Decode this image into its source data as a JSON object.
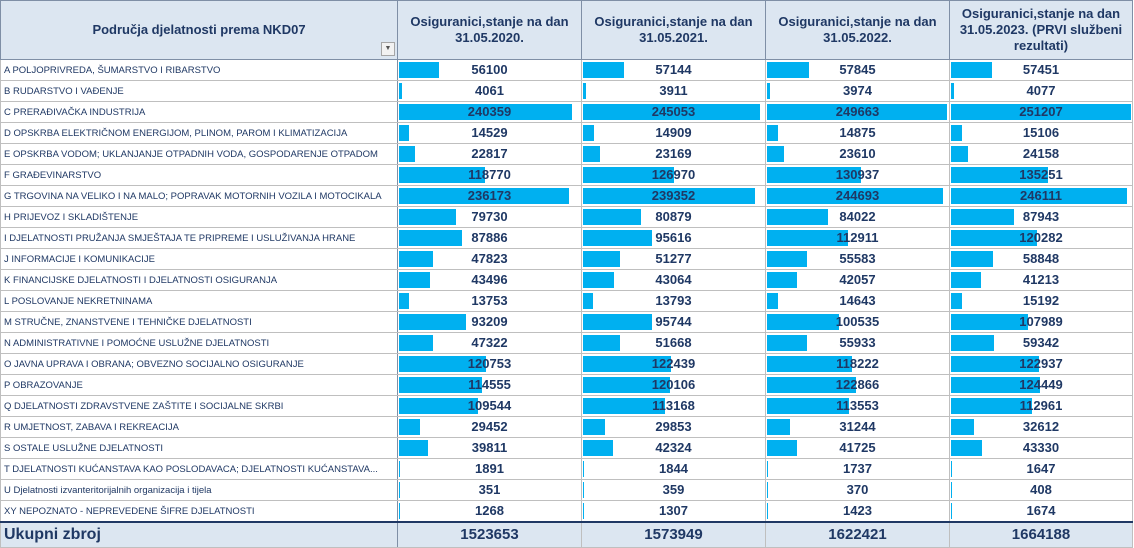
{
  "header": {
    "category": "Područja djelatnosti prema NKD07",
    "columns": [
      "Osiguranici,stanje na dan 31.05.2020.",
      "Osiguranici,stanje na dan 31.05.2021.",
      "Osiguranici,stanje na dan 31.05.2022.",
      "Osiguranici,stanje na dan 31.05.2023. (PRVI službeni rezultati)"
    ]
  },
  "bar_color": "#00b0f0",
  "bar_max": 251207,
  "rows": [
    {
      "label": "A POLJOPRIVREDA, ŠUMARSTVO I RIBARSTVO",
      "values": [
        "56100",
        "57144",
        "57845",
        "57451"
      ]
    },
    {
      "label": "B RUDARSTVO I VAĐENJE",
      "values": [
        "4061",
        "3911",
        "3974",
        "4077"
      ]
    },
    {
      "label": "C PRERAĐIVAČKA INDUSTRIJA",
      "values": [
        "240359",
        "245053",
        "249663",
        "251207"
      ]
    },
    {
      "label": "D OPSKRBA ELEKTRIČNOM ENERGIJOM, PLINOM, PAROM I KLIMATIZACIJA",
      "values": [
        "14529",
        "14909",
        "14875",
        "15106"
      ]
    },
    {
      "label": "E OPSKRBA VODOM; UKLANJANJE OTPADNIH VODA, GOSPODARENJE OTPADOM",
      "values": [
        "22817",
        "23169",
        "23610",
        "24158"
      ]
    },
    {
      "label": "F GRAĐEVINARSTVO",
      "values": [
        "118770",
        "126970",
        "130937",
        "135251"
      ]
    },
    {
      "label": "G TRGOVINA NA VELIKO I NA MALO; POPRAVAK MOTORNIH VOZILA I MOTOCIKALA",
      "values": [
        "236173",
        "239352",
        "244693",
        "246111"
      ]
    },
    {
      "label": "H PRIJEVOZ I SKLADIŠTENJE",
      "values": [
        "79730",
        "80879",
        "84022",
        "87943"
      ]
    },
    {
      "label": "I DJELATNOSTI PRUŽANJA SMJEŠTAJA TE PRIPREME I USLUŽIVANJA HRANE",
      "values": [
        "87886",
        "95616",
        "112911",
        "120282"
      ]
    },
    {
      "label": "J INFORMACIJE I KOMUNIKACIJE",
      "values": [
        "47823",
        "51277",
        "55583",
        "58848"
      ]
    },
    {
      "label": "K FINANCIJSKE DJELATNOSTI I DJELATNOSTI OSIGURANJA",
      "values": [
        "43496",
        "43064",
        "42057",
        "41213"
      ]
    },
    {
      "label": "L POSLOVANJE NEKRETNINAMA",
      "values": [
        "13753",
        "13793",
        "14643",
        "15192"
      ]
    },
    {
      "label": "M STRUČNE, ZNANSTVENE I TEHNIČKE DJELATNOSTI",
      "values": [
        "93209",
        "95744",
        "100535",
        "107989"
      ]
    },
    {
      "label": "N ADMINISTRATIVNE I POMOĆNE USLUŽNE DJELATNOSTI",
      "values": [
        "47322",
        "51668",
        "55933",
        "59342"
      ]
    },
    {
      "label": "O JAVNA UPRAVA I OBRANA; OBVEZNO SOCIJALNO OSIGURANJE",
      "values": [
        "120753",
        "122439",
        "118222",
        "122937"
      ]
    },
    {
      "label": "P OBRAZOVANJE",
      "values": [
        "114555",
        "120106",
        "122866",
        "124449"
      ]
    },
    {
      "label": "Q DJELATNOSTI ZDRAVSTVENE ZAŠTITE I SOCIJALNE SKRBI",
      "values": [
        "109544",
        "113168",
        "113553",
        "112961"
      ]
    },
    {
      "label": "R UMJETNOST, ZABAVA I REKREACIJA",
      "values": [
        "29452",
        "29853",
        "31244",
        "32612"
      ]
    },
    {
      "label": "S OSTALE USLUŽNE DJELATNOSTI",
      "values": [
        "39811",
        "42324",
        "41725",
        "43330"
      ]
    },
    {
      "label": "T DJELATNOSTI KUĆANSTAVA KAO POSLODAVACA; DJELATNOSTI KUĆANSTAVA...",
      "values": [
        "1891",
        "1844",
        "1737",
        "1647"
      ]
    },
    {
      "label": "U Djelatnosti izvanteritorijalnih organizacija i tijela",
      "values": [
        "351",
        "359",
        "370",
        "408"
      ]
    },
    {
      "label": "XY NEPOZNATO - NEPREVEDENE ŠIFRE DJELATNOSTI",
      "values": [
        "1268",
        "1307",
        "1423",
        "1674"
      ]
    }
  ],
  "total": {
    "label": "Ukupni zbroj",
    "values": [
      "1523653",
      "1573949",
      "1622421",
      "1664188"
    ]
  }
}
